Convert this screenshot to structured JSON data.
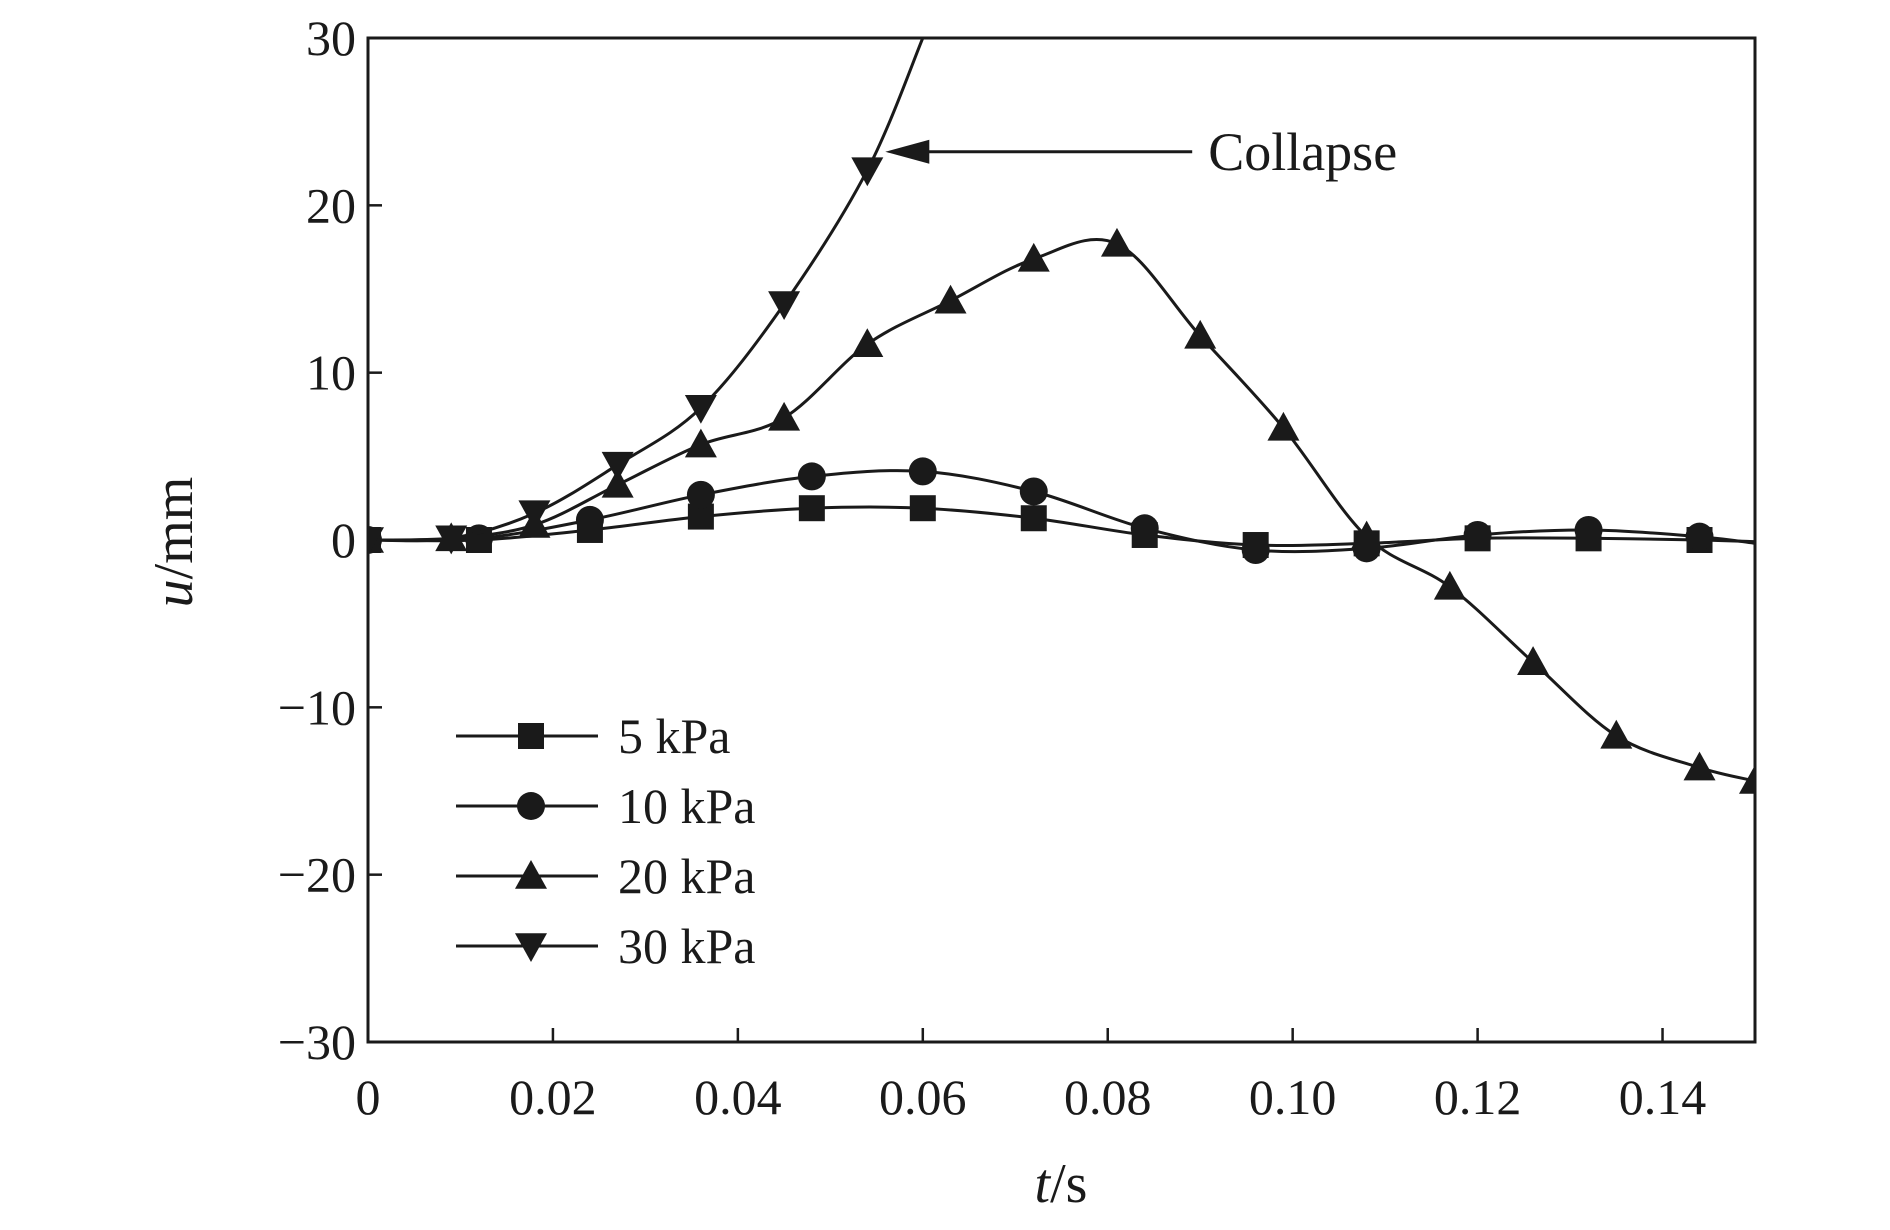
{
  "chart_data": {
    "type": "line",
    "xlabel": {
      "var": "t",
      "unit": "/s"
    },
    "ylabel": {
      "var": "u",
      "unit": "/mm"
    },
    "xlim": [
      0,
      0.15
    ],
    "ylim": [
      -30,
      30
    ],
    "xticks": [
      0,
      0.02,
      0.04,
      0.06,
      0.08,
      0.1,
      0.12,
      0.14
    ],
    "xtick_labels": [
      "0",
      "0.02",
      "0.04",
      "0.06",
      "0.08",
      "0.10",
      "0.12",
      "0.14"
    ],
    "yticks": [
      -30,
      -20,
      -10,
      0,
      10,
      20,
      30
    ],
    "ytick_labels": [
      "−30",
      "−20",
      "−10",
      "0",
      "10",
      "20",
      "30"
    ],
    "grid": false,
    "legend_position": "lower-left",
    "colors": {
      "line": "#1a1a1a",
      "axis": "#1a1a1a"
    },
    "series": [
      {
        "name": "5 kPa",
        "marker": "square",
        "x": [
          0,
          0.012,
          0.024,
          0.036,
          0.048,
          0.06,
          0.072,
          0.084,
          0.096,
          0.108,
          0.12,
          0.132,
          0.144,
          0.15
        ],
        "y": [
          0,
          0,
          0.6,
          1.4,
          1.9,
          1.9,
          1.3,
          0.3,
          -0.3,
          -0.2,
          0.1,
          0.1,
          0,
          -0.1
        ]
      },
      {
        "name": "10 kPa",
        "marker": "circle",
        "x": [
          0,
          0.012,
          0.024,
          0.036,
          0.048,
          0.06,
          0.072,
          0.084,
          0.096,
          0.108,
          0.12,
          0.132,
          0.144,
          0.15
        ],
        "y": [
          0,
          0.1,
          1.2,
          2.7,
          3.8,
          4.1,
          2.9,
          0.7,
          -0.6,
          -0.5,
          0.3,
          0.6,
          0.2,
          -0.2
        ]
      },
      {
        "name": "20 kPa",
        "marker": "triangle-up",
        "x": [
          0,
          0.009,
          0.018,
          0.027,
          0.036,
          0.045,
          0.054,
          0.063,
          0.072,
          0.081,
          0.09,
          0.099,
          0.108,
          0.117,
          0.126,
          0.135,
          0.144,
          0.15
        ],
        "y": [
          0,
          0.1,
          0.9,
          3.3,
          5.7,
          7.3,
          11.7,
          14.3,
          16.8,
          17.7,
          12.2,
          6.7,
          0.2,
          -2.8,
          -7.3,
          -11.7,
          -13.6,
          -14.4
        ]
      },
      {
        "name": "30 kPa",
        "marker": "triangle-down",
        "x": [
          0,
          0.009,
          0.018,
          0.027,
          0.036,
          0.045,
          0.054,
          0.06
        ],
        "y": [
          0,
          0.1,
          1.6,
          4.5,
          7.9,
          14.1,
          22.1,
          30
        ]
      }
    ],
    "annotation": {
      "text": "Collapse",
      "x": 0.054,
      "y": 22.1,
      "text_x": 0.09,
      "text_y": 23.2
    }
  }
}
